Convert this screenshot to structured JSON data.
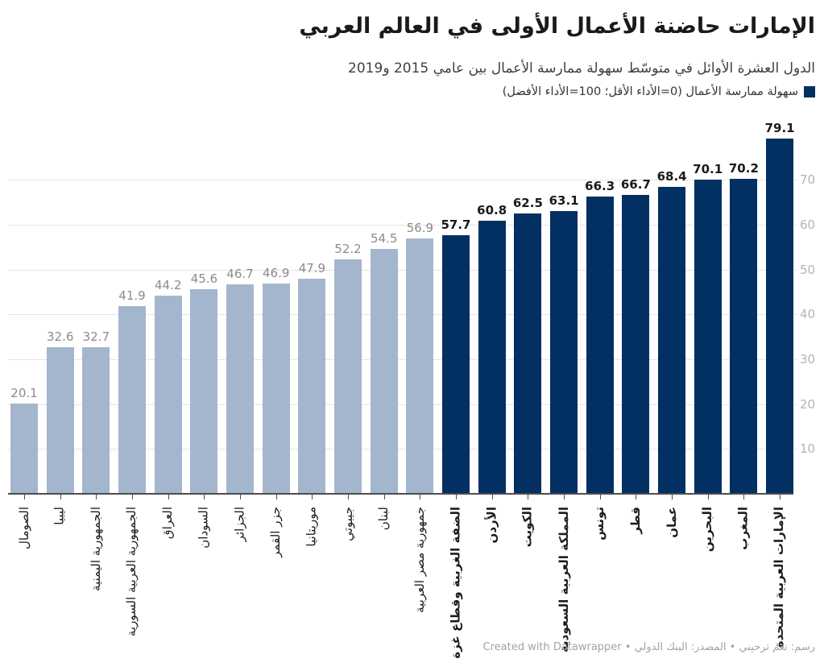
{
  "header": {
    "title": "الإمارات حاضنة الأعمال الأولى في العالم العربي",
    "subtitle": "الدول العشرة الأوائل في متوسّط سهولة ممارسة الأعمال بين عامي 2015 و2019"
  },
  "legend": {
    "label": "سهولة ممارسة الأعمال (0=الأداء الأقل؛ 100=الأداء الأفضل)",
    "swatch_color": "#033063"
  },
  "chart_data": {
    "type": "bar",
    "title": "الإمارات حاضنة الأعمال الأولى في العالم العربي",
    "categories": [
      "الصومال",
      "ليبيا",
      "الجمهورية اليمنية",
      "الجمهورية العربية السورية",
      "العراق",
      "السودان",
      "الجزائر",
      "جزر القمر",
      "موريتانيا",
      "جيبوتي",
      "لبنان",
      "جمهورية مصر العربية",
      "الضفة الغربية وقطاع غزة",
      "الأردن",
      "الكويت",
      "المملكة العربية السعودية",
      "تونس",
      "قطر",
      "عمان",
      "البحرين",
      "المغرب",
      "الإمارات العربية المتحدة"
    ],
    "values": [
      20.1,
      32.6,
      32.7,
      41.9,
      44.2,
      45.6,
      46.7,
      46.9,
      47.9,
      52.2,
      54.5,
      56.9,
      57.7,
      60.8,
      62.5,
      63.1,
      66.3,
      66.7,
      68.4,
      70.1,
      70.2,
      79.1
    ],
    "highlight_from_index": 12,
    "yticks": [
      10,
      20,
      30,
      40,
      50,
      60,
      70
    ],
    "ylim": [
      0,
      80
    ],
    "grid": true,
    "value_labels": true,
    "bar_color_default": "#a4b6cd",
    "bar_color_highlight": "#033063",
    "xlabel": "",
    "ylabel": ""
  },
  "footer": {
    "credit": "رسم: نغم ترحيني • المصدر: البنك الدولي • Created with Datawrapper"
  }
}
